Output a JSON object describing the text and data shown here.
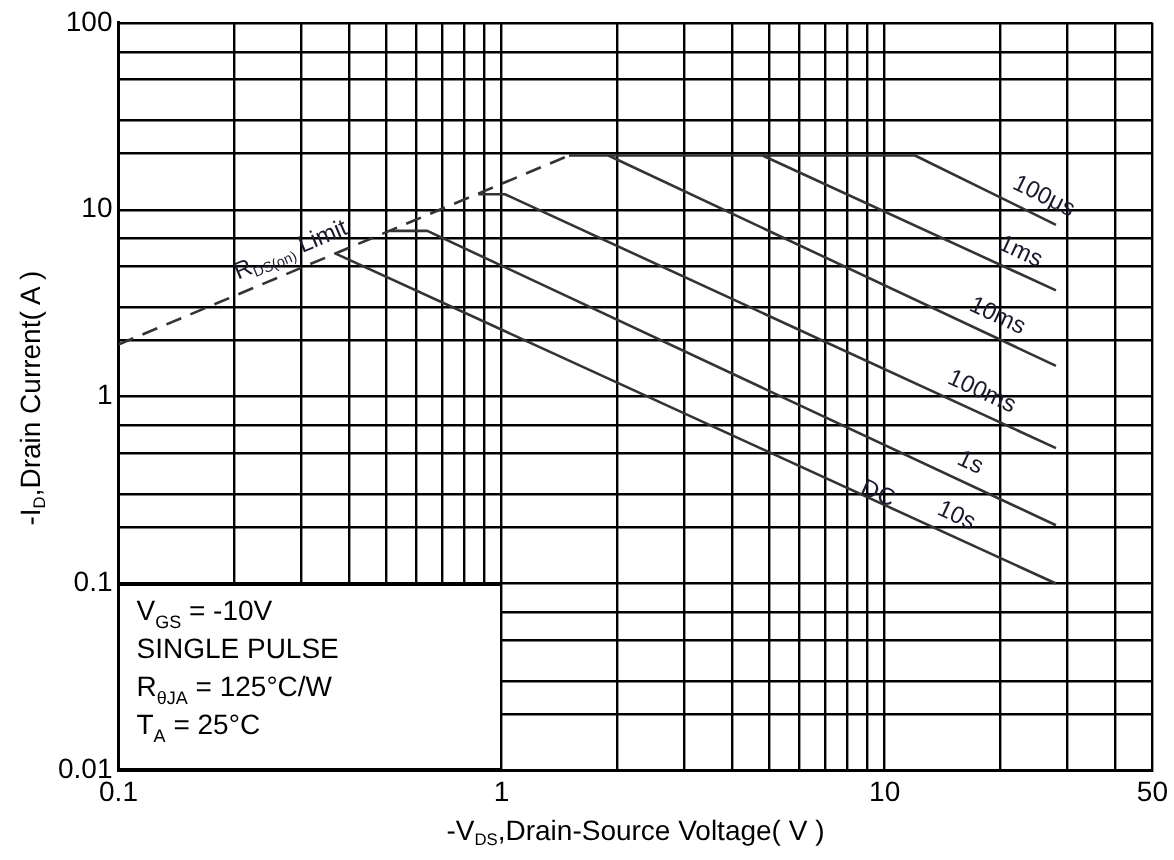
{
  "chart_data": {
    "type": "line",
    "xlabel": "-V$_{DS}$,Drain-Source Voltage( V )",
    "ylabel": "-I$_{D}$,Drain Current( A )",
    "log": "xy",
    "grid": true,
    "legend": false,
    "marker": "none",
    "xlim": [
      0.1,
      50
    ],
    "ylim": [
      0.01,
      100
    ],
    "xticks": [
      0.1,
      {
        "value": 0.2,
        "label": null
      },
      {
        "value": 0.3,
        "label": null
      },
      {
        "value": 0.4,
        "label": null
      },
      {
        "value": 0.5,
        "label": null
      },
      {
        "value": 0.6,
        "label": null
      },
      {
        "value": 0.7,
        "label": null
      },
      {
        "value": 0.8,
        "label": null
      },
      {
        "value": 0.9,
        "label": null
      },
      1,
      {
        "value": 2,
        "label": null
      },
      {
        "value": 3,
        "label": null
      },
      {
        "value": 4,
        "label": null
      },
      {
        "value": 5,
        "label": null
      },
      {
        "value": 6,
        "label": null
      },
      {
        "value": 7,
        "label": null
      },
      {
        "value": 8,
        "label": null
      },
      {
        "value": 9,
        "label": null
      },
      10,
      {
        "value": 20,
        "label": null
      },
      {
        "value": 30,
        "label": null
      },
      {
        "value": 40,
        "label": null
      },
      50
    ],
    "yticks": [
      0.01,
      {
        "value": 0.02,
        "label": null
      },
      {
        "value": 0.03,
        "label": null
      },
      {
        "value": 0.05,
        "label": null
      },
      {
        "value": 0.07,
        "label": null
      },
      0.1,
      {
        "value": 0.2,
        "label": null
      },
      {
        "value": 0.3,
        "label": null
      },
      {
        "value": 0.5,
        "label": null
      },
      {
        "value": 0.7,
        "label": null
      },
      1,
      {
        "value": 2,
        "label": null
      },
      {
        "value": 3,
        "label": null
      },
      {
        "value": 5,
        "label": null
      },
      {
        "value": 7,
        "label": null
      },
      10,
      {
        "value": 20,
        "label": null
      },
      {
        "value": 30,
        "label": null
      },
      {
        "value": 50,
        "label": null
      },
      {
        "value": 70,
        "label": null
      },
      100
    ],
    "series": [
      {
        "name": "R$_{DS(on)}$ Limit",
        "color": "#333333",
        "line_style": "dashed",
        "x": [
          0.1,
          1.5
        ],
        "values": [
          1.9,
          19.5
        ]
      },
      {
        "name": "100μs",
        "color": "#333333",
        "x": [
          1.5,
          12,
          28
        ],
        "values": [
          19.5,
          19.5,
          8.3
        ]
      },
      {
        "name": "1ms",
        "color": "#333333",
        "x": [
          4.8,
          28
        ],
        "values": [
          19.5,
          3.7
        ]
      },
      {
        "name": "10ms",
        "color": "#333333",
        "x": [
          1.9,
          28
        ],
        "values": [
          19.5,
          1.46
        ]
      },
      {
        "name": "100ms",
        "color": "#333333",
        "x": [
          0.87,
          1.02,
          28
        ],
        "values": [
          12.1,
          12.1,
          0.53
        ]
      },
      {
        "name": "1s",
        "color": "#333333",
        "x": [
          0.51,
          0.64,
          28
        ],
        "values": [
          7.7,
          7.7,
          0.205
        ]
      },
      {
        "name": "10s",
        "color": "#333333",
        "x": [
          0.37,
          28
        ],
        "values": [
          5.8,
          0.1
        ]
      }
    ],
    "annotations": [
      {
        "text": "DC",
        "x": 9.6,
        "y": 0.273
      },
      "V$_{GS}$ = -10V",
      "SINGLE PULSE",
      "R$_{θJA}$ = 125°C/W",
      "T$_{A}$ = 25°C"
    ]
  }
}
